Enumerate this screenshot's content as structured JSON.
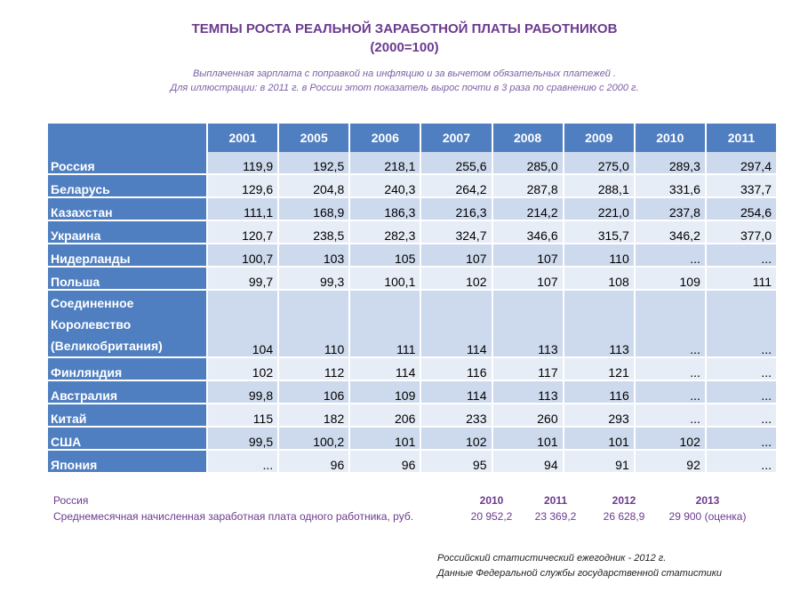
{
  "title": {
    "line1": "ТЕМПЫ РОСТА РЕАЛЬНОЙ ЗАРАБОТНОЙ ПЛАТЫ РАБОТНИКОВ",
    "line2": "(2000=100)"
  },
  "subtitle": {
    "line1": "Выплаченная зарплата  с поправкой на инфляцию и за вычетом обязательных платежей .",
    "line2": "Для иллюстрации: в 2011 г. в России этот показатель вырос почти в 3 раза по сравнению с 2000 г."
  },
  "table": {
    "years": [
      "2001",
      "2005",
      "2006",
      "2007",
      "2008",
      "2009",
      "2010",
      "2011"
    ],
    "rows": [
      {
        "country": "Россия",
        "values": [
          "119,9",
          "192,5",
          "218,1",
          "255,6",
          "285,0",
          "275,0",
          "289,3",
          "297,4"
        ]
      },
      {
        "country": "Беларусь",
        "values": [
          "129,6",
          "204,8",
          "240,3",
          "264,2",
          "287,8",
          "288,1",
          "331,6",
          "337,7"
        ]
      },
      {
        "country": "Казахстан",
        "values": [
          "111,1",
          "168,9",
          "186,3",
          "216,3",
          "214,2",
          "221,0",
          "237,8",
          "254,6"
        ]
      },
      {
        "country": "Украина",
        "values": [
          "120,7",
          "238,5",
          "282,3",
          "324,7",
          "346,6",
          "315,7",
          "346,2",
          "377,0"
        ]
      },
      {
        "country": "Нидерланды",
        "values": [
          "100,7",
          "103",
          "105",
          "107",
          "107",
          "110",
          "...",
          "..."
        ]
      },
      {
        "country": "Польша",
        "values": [
          "99,7",
          "99,3",
          "100,1",
          "102",
          "107",
          "108",
          "109",
          "111"
        ]
      },
      {
        "country_lines": [
          "Соединенное",
          "Королевство",
          "(Великобритания)"
        ],
        "values": [
          "104",
          "110",
          "111",
          "114",
          "113",
          "113",
          "...",
          "..."
        ]
      },
      {
        "country": "Финляндия",
        "values": [
          "102",
          "112",
          "114",
          "116",
          "117",
          "121",
          "...",
          "..."
        ]
      },
      {
        "country": "Австралия",
        "values": [
          "99,8",
          "106",
          "109",
          "114",
          "113",
          "116",
          "...",
          "..."
        ]
      },
      {
        "country": "Китай",
        "values": [
          "115",
          "182",
          "206",
          "233",
          "260",
          "293",
          "...",
          "..."
        ]
      },
      {
        "country": "США",
        "values": [
          "99,5",
          "100,2",
          "101",
          "102",
          "101",
          "101",
          "102",
          "..."
        ]
      },
      {
        "country": "Япония",
        "values": [
          "...",
          "96",
          "96",
          "95",
          "94",
          "91",
          "92",
          "..."
        ]
      }
    ]
  },
  "russia_salary": {
    "label1": "Россия",
    "label2": "Среднемесячная начисленная заработная плата одного работника, руб.",
    "years": [
      "2010",
      "2011",
      "2012",
      "2013"
    ],
    "values": [
      "20 952,2",
      "23 369,2",
      "26 628,9",
      "29 900 (оценка)"
    ]
  },
  "source": {
    "line1": "Российский статистический ежегодник - 2012 г.",
    "line2": "Данные Федеральной службы государственной статистики"
  }
}
